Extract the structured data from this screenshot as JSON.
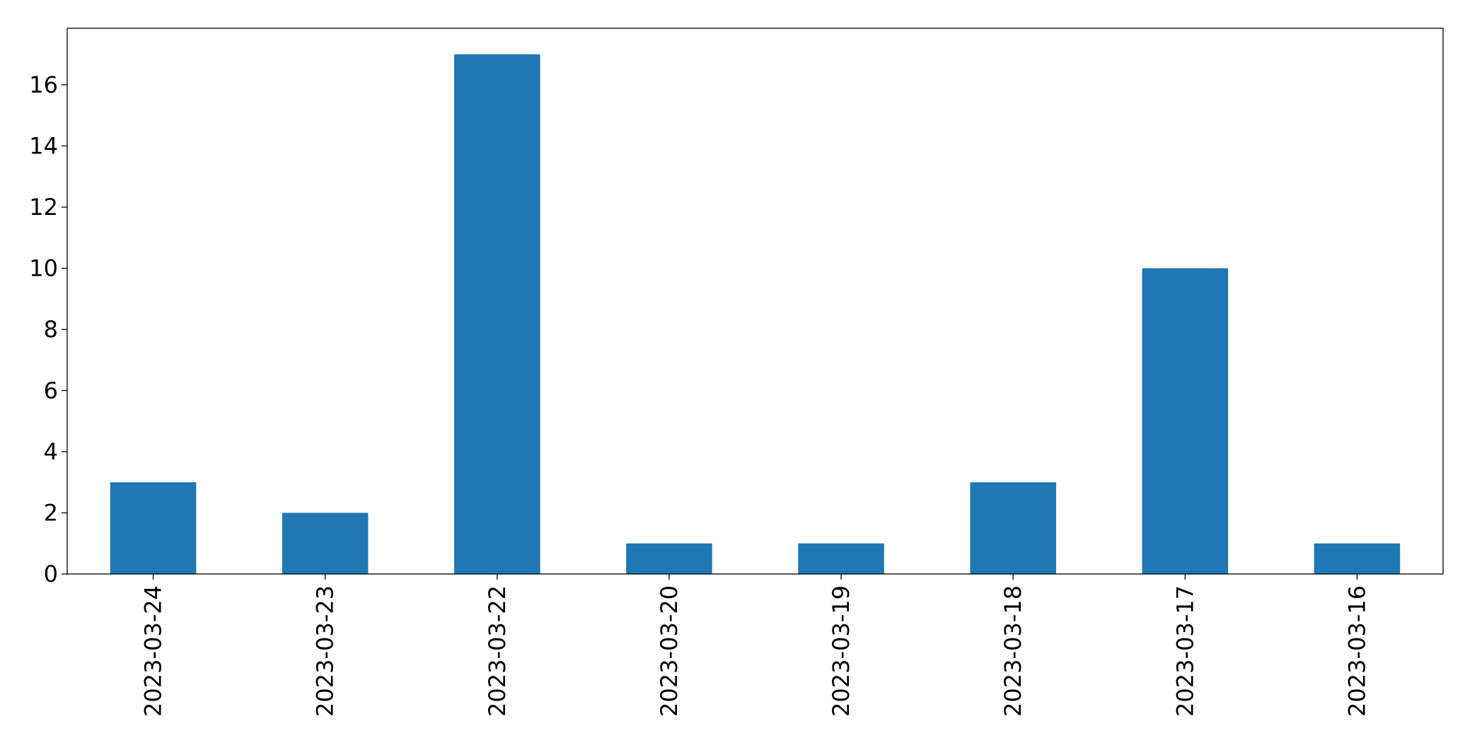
{
  "chart_data": {
    "type": "bar",
    "categories": [
      "2023-03-24",
      "2023-03-23",
      "2023-03-22",
      "2023-03-20",
      "2023-03-19",
      "2023-03-18",
      "2023-03-17",
      "2023-03-16"
    ],
    "values": [
      3,
      2,
      17,
      1,
      1,
      3,
      10,
      1
    ],
    "yticks": [
      0,
      2,
      4,
      6,
      8,
      10,
      12,
      14,
      16
    ],
    "ylim": [
      0,
      17.85
    ],
    "grid": false,
    "bar_color": "#1f77b4",
    "title": "",
    "xlabel": "",
    "ylabel": ""
  }
}
